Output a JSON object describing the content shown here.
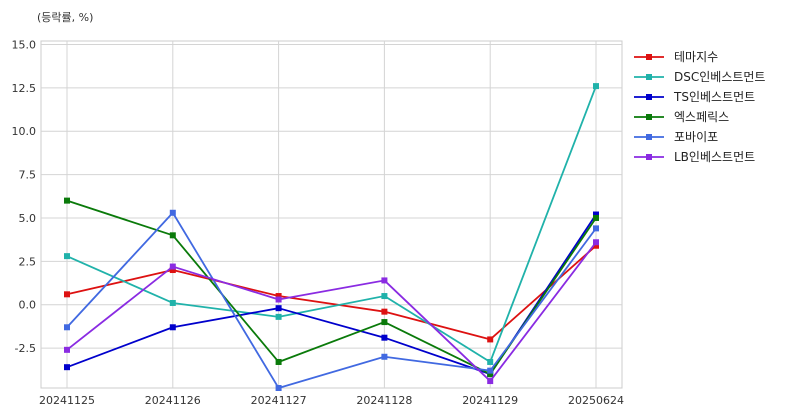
{
  "unit_label": "(등락률, %)",
  "chart_data": {
    "type": "line",
    "categories": [
      "20241125",
      "20241126",
      "20241127",
      "20241128",
      "20241129",
      "20250624"
    ],
    "ylim": [
      -4.8,
      15.2
    ],
    "yticks": [
      15.0,
      12.5,
      10.0,
      7.5,
      5.0,
      2.5,
      0.0,
      -2.5
    ],
    "ytick_labels": [
      "15.0",
      "12.5",
      "10.0",
      "7.5",
      "5.0",
      "2.5",
      "0.0",
      "-2.5"
    ],
    "grid": true,
    "legend_position": "right",
    "series": [
      {
        "name": "테마지수",
        "color": "#dd1111",
        "values": [
          0.6,
          2.0,
          0.5,
          -0.4,
          -2.0,
          3.4
        ]
      },
      {
        "name": "DSC인베스트먼트",
        "color": "#20b2aa",
        "values": [
          2.8,
          0.1,
          -0.7,
          0.5,
          -3.3,
          12.6
        ]
      },
      {
        "name": "TS인베스트먼트",
        "color": "#0000cc",
        "values": [
          -3.6,
          -1.3,
          -0.2,
          -1.9,
          -4.0,
          5.2
        ]
      },
      {
        "name": "엑스페릭스",
        "color": "#0a7a0a",
        "values": [
          6.0,
          4.0,
          -3.3,
          -1.0,
          -4.0,
          5.0
        ]
      },
      {
        "name": "포바이포",
        "color": "#4169e1",
        "values": [
          -1.3,
          5.3,
          -4.8,
          -3.0,
          -3.8,
          4.4
        ]
      },
      {
        "name": "LB인베스트먼트",
        "color": "#8a2be2",
        "values": [
          -2.6,
          2.2,
          0.3,
          1.4,
          -4.4,
          3.6
        ]
      }
    ]
  }
}
